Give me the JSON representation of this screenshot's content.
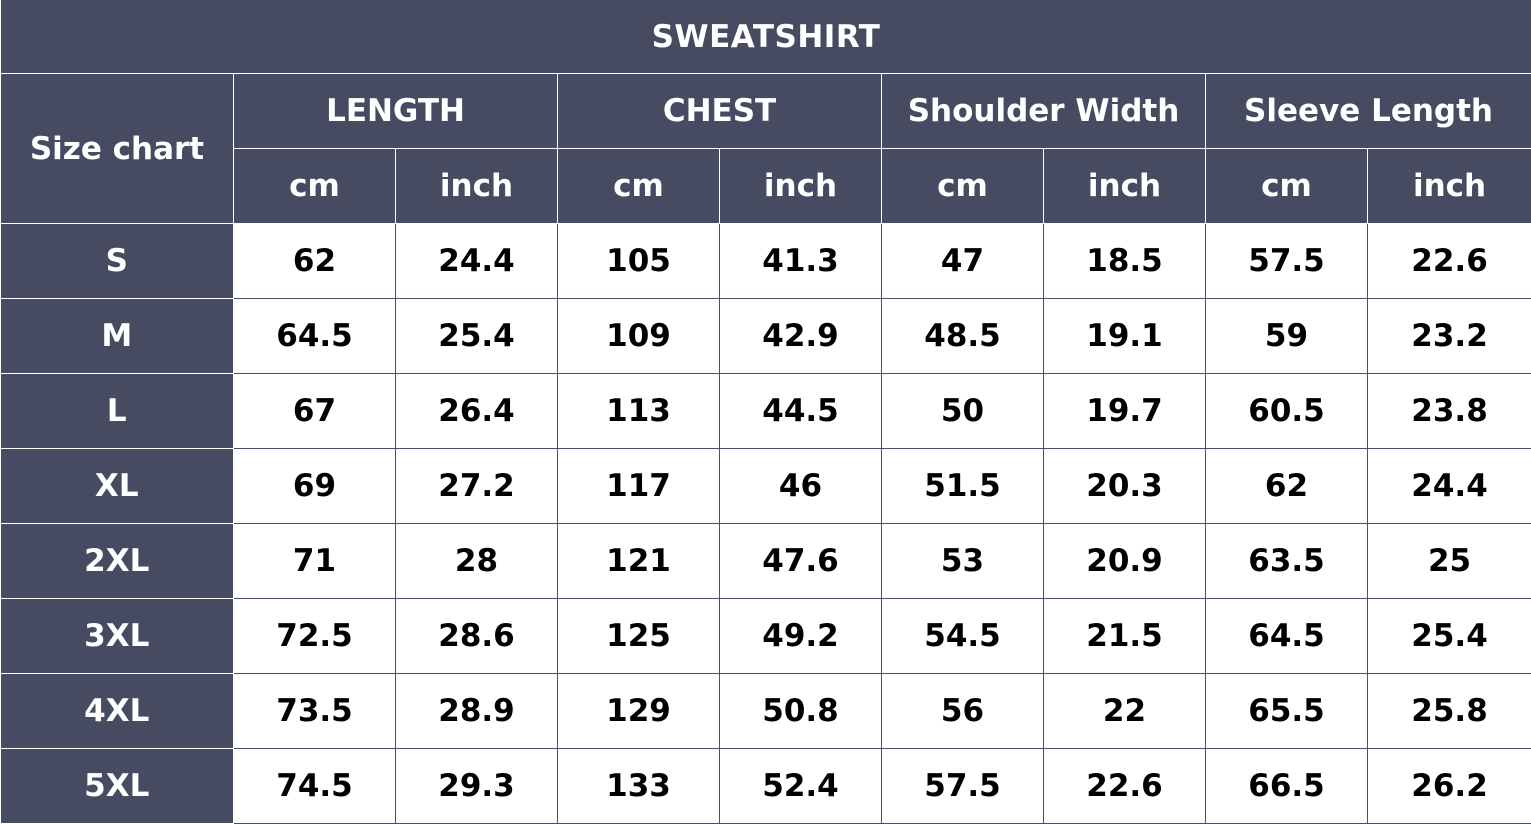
{
  "title": "SWEATSHIRT",
  "corner_label": "Size chart",
  "groups": [
    {
      "label": "LENGTH",
      "units": [
        "cm",
        "inch"
      ]
    },
    {
      "label": "CHEST",
      "units": [
        "cm",
        "inch"
      ]
    },
    {
      "label": "Shoulder Width",
      "units": [
        "cm",
        "inch"
      ]
    },
    {
      "label": "Sleeve Length",
      "units": [
        "cm",
        "inch"
      ]
    }
  ],
  "rows": [
    {
      "size": "S",
      "values": [
        "62",
        "24.4",
        "105",
        "41.3",
        "47",
        "18.5",
        "57.5",
        "22.6"
      ]
    },
    {
      "size": "M",
      "values": [
        "64.5",
        "25.4",
        "109",
        "42.9",
        "48.5",
        "19.1",
        "59",
        "23.2"
      ]
    },
    {
      "size": "L",
      "values": [
        "67",
        "26.4",
        "113",
        "44.5",
        "50",
        "19.7",
        "60.5",
        "23.8"
      ]
    },
    {
      "size": "XL",
      "values": [
        "69",
        "27.2",
        "117",
        "46",
        "51.5",
        "20.3",
        "62",
        "24.4"
      ]
    },
    {
      "size": "2XL",
      "values": [
        "71",
        "28",
        "121",
        "47.6",
        "53",
        "20.9",
        "63.5",
        "25"
      ]
    },
    {
      "size": "3XL",
      "values": [
        "72.5",
        "28.6",
        "125",
        "49.2",
        "54.5",
        "21.5",
        "64.5",
        "25.4"
      ]
    },
    {
      "size": "4XL",
      "values": [
        "73.5",
        "28.9",
        "129",
        "50.8",
        "56",
        "22",
        "65.5",
        "25.8"
      ]
    },
    {
      "size": "5XL",
      "values": [
        "74.5",
        "29.3",
        "133",
        "52.4",
        "57.5",
        "22.6",
        "66.5",
        "26.2"
      ]
    }
  ],
  "colors": {
    "header_bg": "#464b62",
    "header_text": "#ffffff",
    "cell_bg": "#ffffff",
    "cell_text": "#000000"
  }
}
